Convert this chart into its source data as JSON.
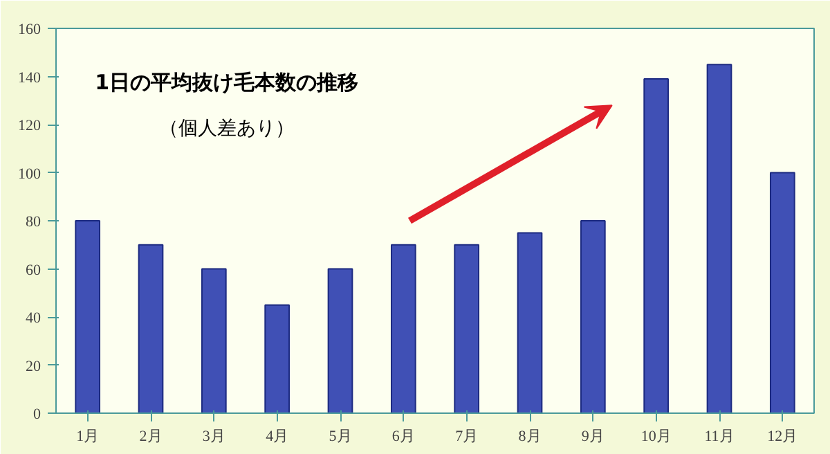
{
  "chart_data": {
    "type": "bar",
    "title": "1日の平均抜け毛本数の推移",
    "subtitle": "（個人差あり）",
    "categories": [
      "1月",
      "2月",
      "3月",
      "4月",
      "5月",
      "6月",
      "7月",
      "8月",
      "9月",
      "10月",
      "11月",
      "12月"
    ],
    "values": [
      80,
      70,
      60,
      45,
      60,
      70,
      70,
      75,
      80,
      139,
      145,
      100
    ],
    "color": "#4050b5",
    "ylim": [
      0,
      160
    ],
    "yticks": [
      0,
      20,
      40,
      60,
      80,
      100,
      120,
      140,
      160
    ],
    "grid": false
  }
}
